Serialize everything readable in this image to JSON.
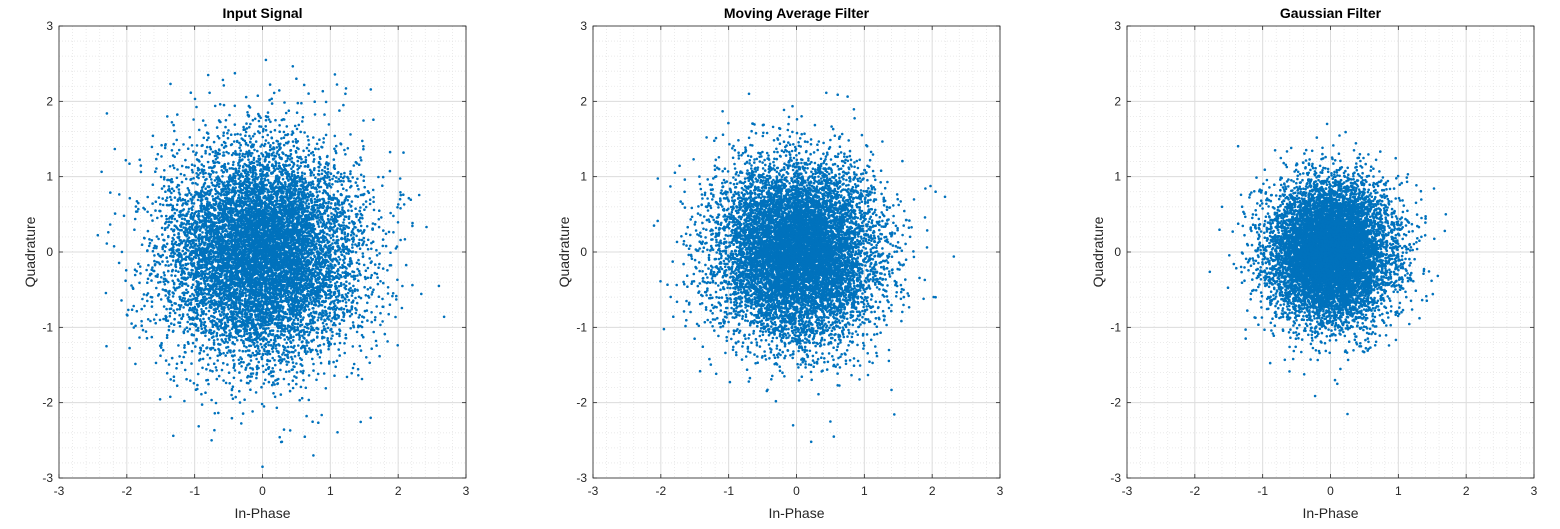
{
  "figure": {
    "colors": {
      "marker": "#0072BD",
      "major_grid": "#dcdcdc",
      "minor_grid": "#e6e6e6",
      "axis": "#262626"
    }
  },
  "chart_data": [
    {
      "type": "scatter",
      "title": "Input Signal",
      "xlabel": "In-Phase",
      "ylabel": "Quadrature",
      "xlim": [
        -3,
        3
      ],
      "ylim": [
        -3,
        3
      ],
      "xticks": [
        "-3",
        "-2",
        "-1",
        "0",
        "1",
        "2",
        "3"
      ],
      "yticks": [
        "-3",
        "-2",
        "-1",
        "0",
        "1",
        "2",
        "3"
      ],
      "grid": true,
      "minor_grid": true,
      "series": [
        {
          "point_count": 10000,
          "distribution": "complex gaussian",
          "std_dev": 0.7,
          "seed": 11,
          "outliers": [
            [
              0.0,
              -2.85
            ],
            [
              0.75,
              -2.7
            ],
            [
              0.5,
              2.3
            ],
            [
              -0.75,
              -2.5
            ],
            [
              2.6,
              -0.45
            ],
            [
              -2.3,
              -1.25
            ],
            [
              0.05,
              2.55
            ],
            [
              -0.8,
              2.35
            ]
          ]
        }
      ]
    },
    {
      "type": "scatter",
      "title": "Moving Average Filter",
      "xlabel": "In-Phase",
      "ylabel": "Quadrature",
      "xlim": [
        -3,
        3
      ],
      "ylim": [
        -3,
        3
      ],
      "xticks": [
        "-3",
        "-2",
        "-1",
        "0",
        "1",
        "2",
        "3"
      ],
      "yticks": [
        "-3",
        "-2",
        "-1",
        "0",
        "1",
        "2",
        "3"
      ],
      "grid": true,
      "minor_grid": true,
      "series": [
        {
          "point_count": 10000,
          "distribution": "complex gaussian",
          "std_dev": 0.58,
          "seed": 23,
          "outliers": [
            [
              -0.05,
              -2.3
            ],
            [
              0.55,
              -2.45
            ],
            [
              0.5,
              -2.25
            ],
            [
              2.05,
              -0.6
            ],
            [
              -2.1,
              0.35
            ],
            [
              -0.7,
              2.1
            ],
            [
              2.05,
              0.8
            ]
          ]
        }
      ]
    },
    {
      "type": "scatter",
      "title": "Gaussian Filter",
      "xlabel": "In-Phase",
      "ylabel": "Quadrature",
      "xlim": [
        -3,
        3
      ],
      "ylim": [
        -3,
        3
      ],
      "xticks": [
        "-3",
        "-2",
        "-1",
        "0",
        "1",
        "2",
        "3"
      ],
      "yticks": [
        "-3",
        "-2",
        "-1",
        "0",
        "1",
        "2",
        "3"
      ],
      "grid": true,
      "minor_grid": true,
      "series": [
        {
          "point_count": 10000,
          "distribution": "complex gaussian",
          "std_dev": 0.45,
          "seed": 37,
          "outliers": [
            [
              0.25,
              -2.15
            ],
            [
              1.7,
              0.5
            ],
            [
              -1.6,
              0.6
            ],
            [
              -0.05,
              1.7
            ],
            [
              -1.25,
              -1.15
            ],
            [
              0.1,
              -1.75
            ]
          ]
        }
      ]
    }
  ]
}
